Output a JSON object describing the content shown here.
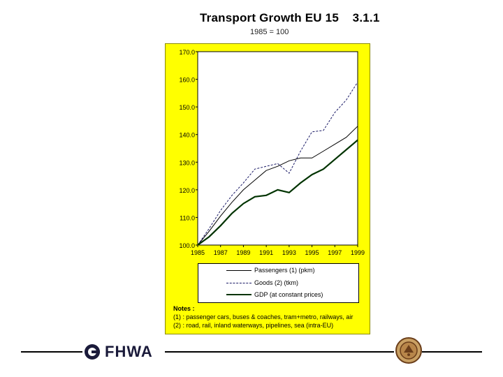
{
  "header": {
    "title": "Transport Growth EU 15    3.1.1",
    "subtitle": "1985 = 100"
  },
  "chart_data": {
    "type": "line",
    "title": "Transport Growth EU 15",
    "subtitle": "1985 = 100",
    "x": [
      1985,
      1986,
      1987,
      1988,
      1989,
      1990,
      1991,
      1992,
      1993,
      1994,
      1995,
      1996,
      1997,
      1998,
      1999
    ],
    "xticks": [
      "1985",
      "1987",
      "1989",
      "1991",
      "1993",
      "1995",
      "1997",
      "1999"
    ],
    "yticks": [
      "100.0",
      "110.0",
      "120.0",
      "130.0",
      "140.0",
      "150.0",
      "160.0",
      "170.0"
    ],
    "ylim": [
      100,
      170
    ],
    "series": [
      {
        "name": "Passengers (1) (pkm)",
        "style": "thin-solid",
        "color": "#000000",
        "values": [
          100,
          105,
          110.5,
          115.5,
          120,
          123.5,
          127,
          128.5,
          130.5,
          131.5,
          131.5,
          134,
          136.5,
          139,
          143
        ]
      },
      {
        "name": "Goods (2) (tkm)",
        "style": "dashed",
        "color": "#1a1a66",
        "values": [
          100,
          106,
          112.5,
          118,
          122.5,
          127.5,
          128.5,
          129.5,
          126,
          134,
          141,
          141.5,
          148,
          152.5,
          159
        ]
      },
      {
        "name": "GDP (at constant prices)",
        "style": "thick-solid",
        "color": "#003300",
        "values": [
          100,
          103,
          107,
          111.5,
          115,
          117.5,
          118,
          120,
          119,
          122.5,
          125.5,
          127.5,
          131,
          134.5,
          138
        ]
      }
    ],
    "grid": false,
    "legend": "bottom"
  },
  "notes": {
    "heading": "Notes :",
    "line1": "(1) : passenger cars, buses & coaches, tram+metro, railways, air",
    "line2": "(2) : road, rail, inland waterways, pipelines, sea (intra-EU)"
  },
  "footer": {
    "logo_text": "FHWA"
  }
}
